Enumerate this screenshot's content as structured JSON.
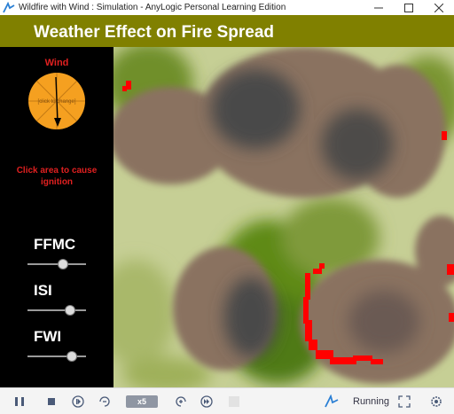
{
  "window": {
    "title": "Wildfire with Wind : Simulation - AnyLogic Personal Learning Edition",
    "app_icon": "anylogic-icon",
    "controls": [
      "minimize-icon",
      "maximize-icon",
      "close-icon"
    ]
  },
  "header": {
    "title": "Weather Effect on Fire Spread",
    "background": "#808000"
  },
  "panel": {
    "wind_label": "Wind",
    "wind_dial_hint": "[click to change]",
    "wind_dial_color": "#f5a020",
    "ignite_note": "Click area to cause ignition",
    "label_color": "#e02020",
    "params": [
      {
        "label": "FFMC",
        "slider_fraction": 0.6
      },
      {
        "label": "ISI",
        "slider_fraction": 0.72
      },
      {
        "label": "FWI",
        "slider_fraction": 0.75
      }
    ]
  },
  "map": {
    "colors": {
      "unburnt_light": "#c6cf95",
      "vegetation_dense": "#4f7a12",
      "burnt": "#8a7260",
      "burnt_core": "#4a4848",
      "fire_front": "#ff0000"
    }
  },
  "toolbar": {
    "buttons": [
      "pause-icon",
      "stop-icon",
      "step-icon",
      "slower-icon",
      "faster-icon",
      "run-to-icon",
      "disabled-icon"
    ],
    "speed": "x5",
    "status": "Running",
    "status_icon": "running-indicator-icon",
    "fullscreen_icon": "fullscreen-icon",
    "settings_icon": "experiment-settings-icon"
  }
}
